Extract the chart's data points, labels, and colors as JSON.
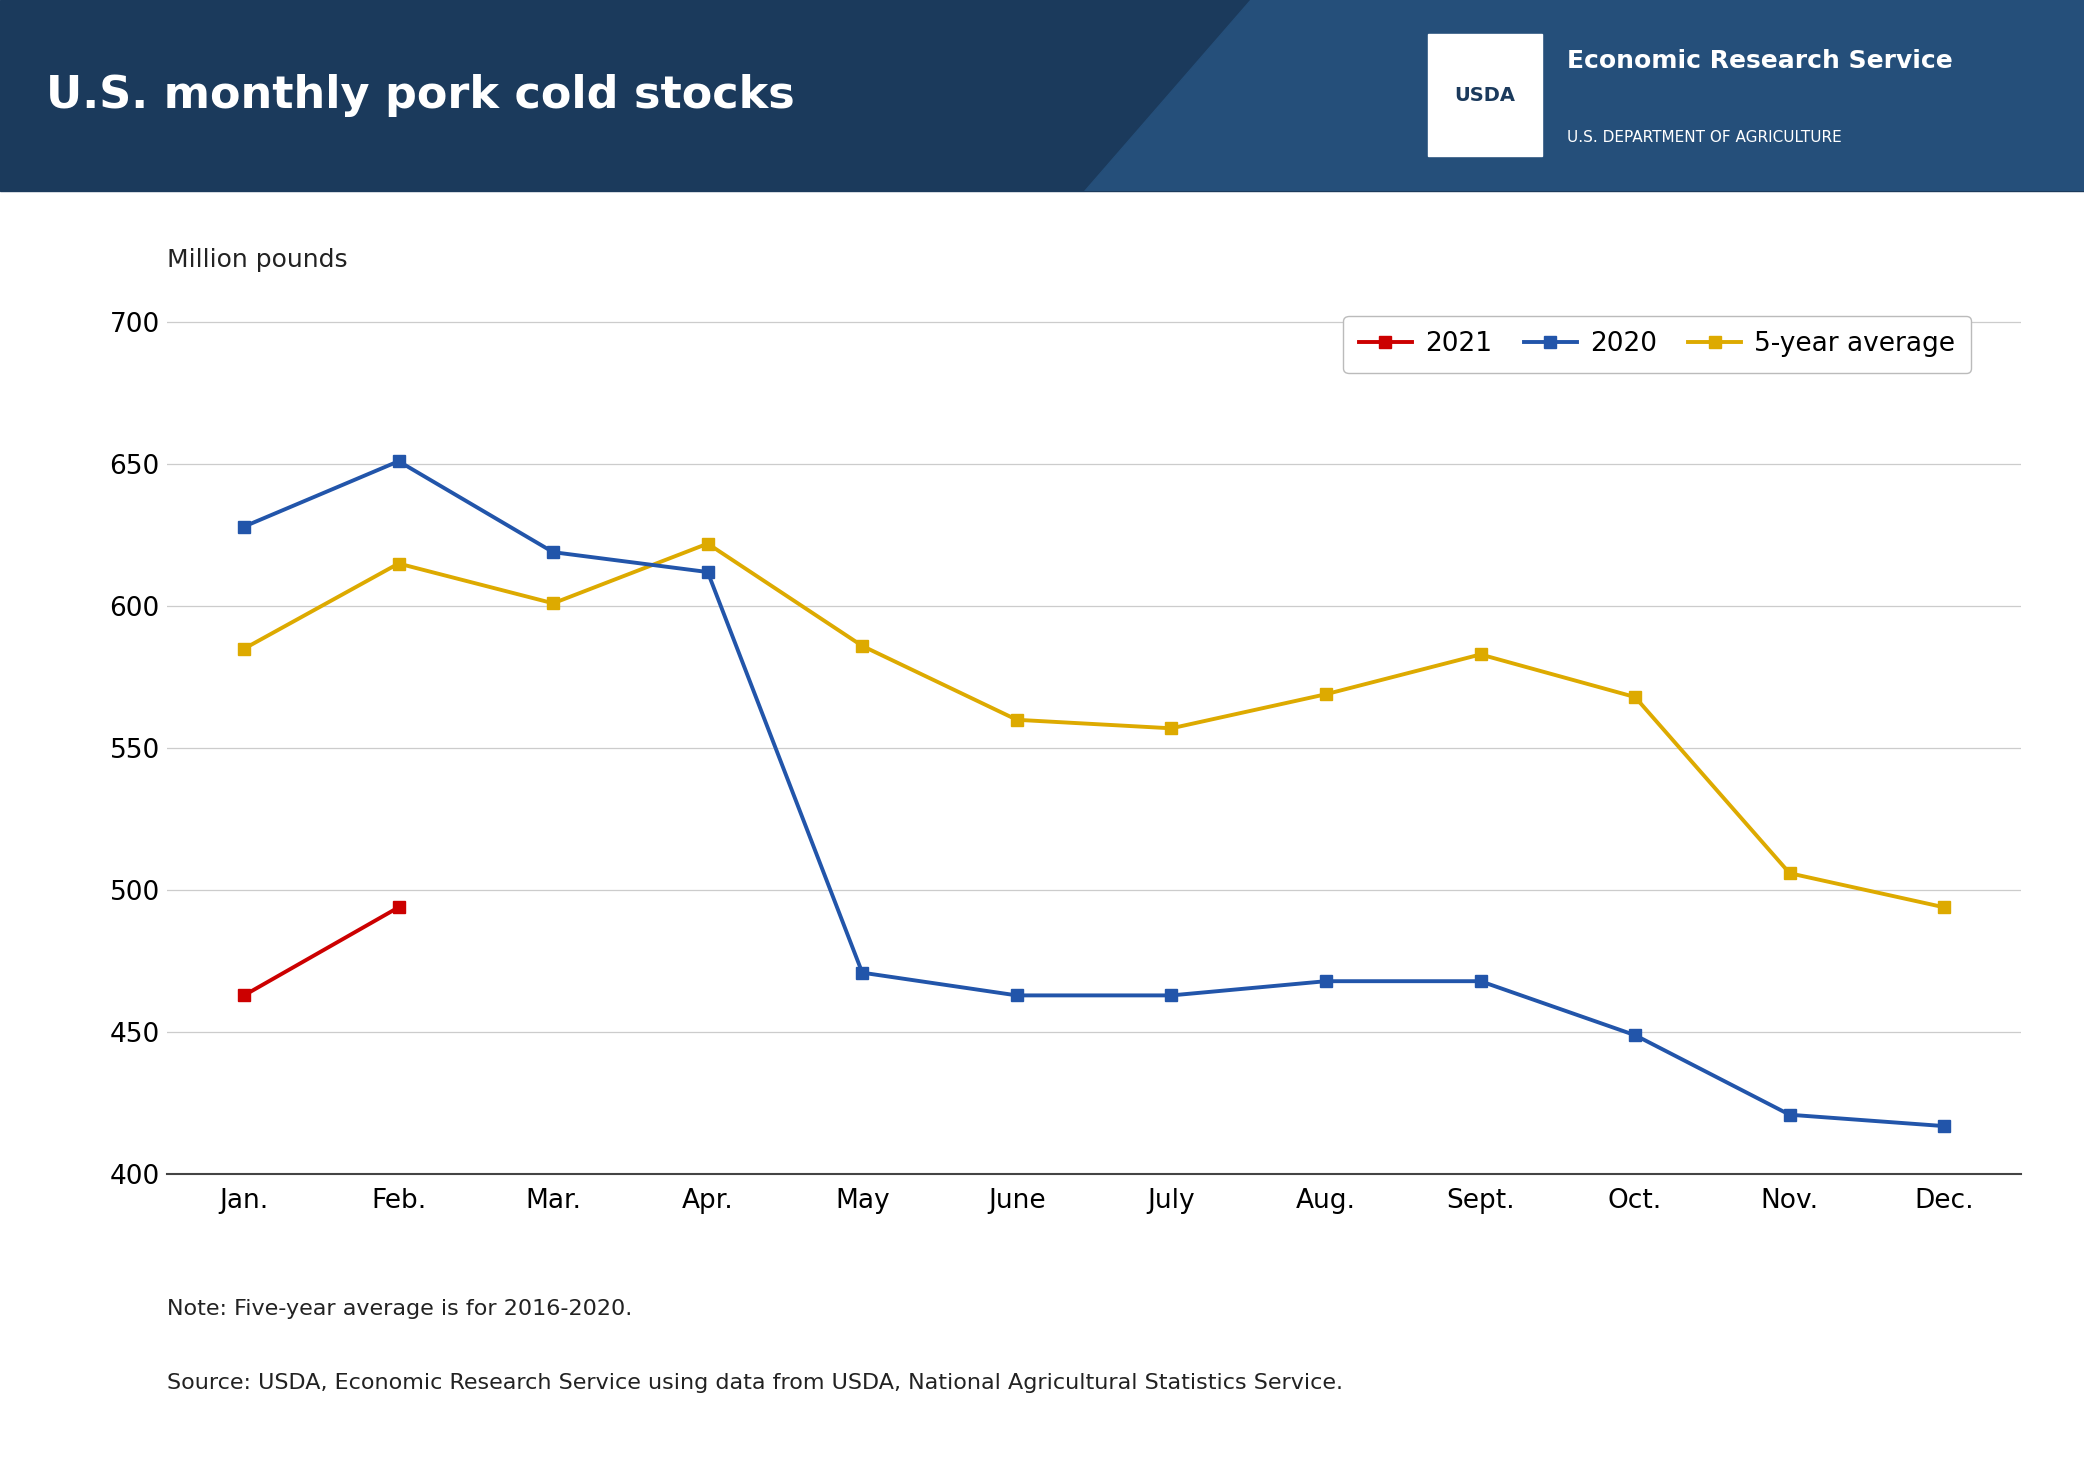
{
  "title": "U.S. monthly pork cold stocks",
  "ylabel": "Million pounds",
  "header_bg_color": "#1b3a5c",
  "header_title_color": "#ffffff",
  "plot_bg_color": "#ffffff",
  "months": [
    "Jan.",
    "Feb.",
    "Mar.",
    "Apr.",
    "May",
    "June",
    "July",
    "Aug.",
    "Sept.",
    "Oct.",
    "Nov.",
    "Dec."
  ],
  "series_2021": [
    463,
    494,
    null,
    null,
    null,
    null,
    null,
    null,
    null,
    null,
    null,
    null
  ],
  "series_2020": [
    628,
    651,
    619,
    612,
    471,
    463,
    463,
    468,
    468,
    449,
    421,
    417
  ],
  "series_5yr_avg": [
    585,
    615,
    601,
    622,
    586,
    560,
    557,
    569,
    583,
    568,
    506,
    494
  ],
  "color_2021": "#cc0000",
  "color_2020": "#2255aa",
  "color_5yr_avg": "#ddaa00",
  "ylim": [
    400,
    710
  ],
  "yticks": [
    400,
    450,
    500,
    550,
    600,
    650,
    700
  ],
  "line_width": 2.8,
  "marker_size": 9,
  "marker_style": "s",
  "legend_labels": [
    "2021",
    "2020",
    "5-year average"
  ],
  "note_text": "Note: Five-year average is for 2016-2020.",
  "source_text": "Source: USDA, Economic Research Service using data from USDA, National Agricultural Statistics Service.",
  "ers_text": "Economic Research Service",
  "usda_dept_text": "U.S. DEPARTMENT OF AGRICULTURE"
}
